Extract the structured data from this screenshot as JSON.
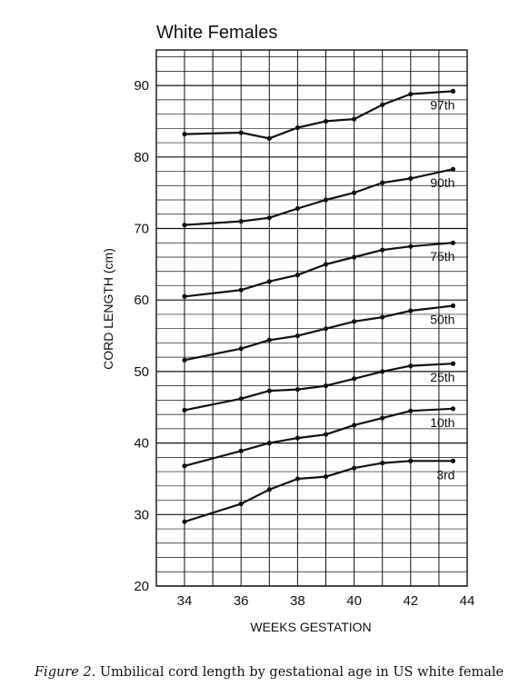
{
  "caption": {
    "label": "Figure 2.",
    "text": "Umbilical cord length by gestational age in US white female"
  },
  "chart_data": {
    "type": "line",
    "title": "White Females",
    "xlabel": "WEEKS GESTATION",
    "ylabel": "CORD LENGTH (cm)",
    "xlim": [
      33,
      44
    ],
    "ylim": [
      20,
      95
    ],
    "x_ticks": [
      34,
      36,
      38,
      40,
      42,
      44
    ],
    "y_ticks": [
      20,
      30,
      40,
      50,
      60,
      70,
      80,
      90
    ],
    "grid": true,
    "line_color": "#111111",
    "series": [
      {
        "name": "97th",
        "x": [
          34,
          36,
          37,
          38,
          39,
          40,
          41,
          42,
          43.5
        ],
        "values": [
          83.2,
          83.4,
          82.6,
          84.1,
          85.0,
          85.3,
          87.3,
          88.8,
          89.2
        ]
      },
      {
        "name": "90th",
        "x": [
          34,
          36,
          37,
          38,
          39,
          40,
          41,
          42,
          43.5
        ],
        "values": [
          70.5,
          71.0,
          71.5,
          72.8,
          74.0,
          75.0,
          76.4,
          77.0,
          78.3
        ]
      },
      {
        "name": "75th",
        "x": [
          34,
          36,
          37,
          38,
          39,
          40,
          41,
          42,
          43.5
        ],
        "values": [
          60.5,
          61.4,
          62.6,
          63.5,
          65.0,
          66.0,
          67.0,
          67.5,
          68.0
        ]
      },
      {
        "name": "50th",
        "x": [
          34,
          36,
          37,
          38,
          39,
          40,
          41,
          42,
          43.5
        ],
        "values": [
          51.6,
          53.2,
          54.4,
          55.0,
          56.0,
          57.0,
          57.6,
          58.5,
          59.2
        ]
      },
      {
        "name": "25th",
        "x": [
          34,
          36,
          37,
          38,
          39,
          40,
          41,
          42,
          43.5
        ],
        "values": [
          44.6,
          46.2,
          47.3,
          47.5,
          48.0,
          49.0,
          50.0,
          50.8,
          51.1
        ]
      },
      {
        "name": "10th",
        "x": [
          34,
          36,
          37,
          38,
          39,
          40,
          41,
          42,
          43.5
        ],
        "values": [
          36.8,
          38.9,
          40.0,
          40.7,
          41.2,
          42.5,
          43.5,
          44.5,
          44.8
        ]
      },
      {
        "name": "3rd",
        "x": [
          34,
          36,
          37,
          38,
          39,
          40,
          41,
          42,
          43.5
        ],
        "values": [
          29.0,
          31.5,
          33.5,
          35.0,
          35.3,
          36.5,
          37.2,
          37.5,
          37.5
        ]
      }
    ]
  }
}
